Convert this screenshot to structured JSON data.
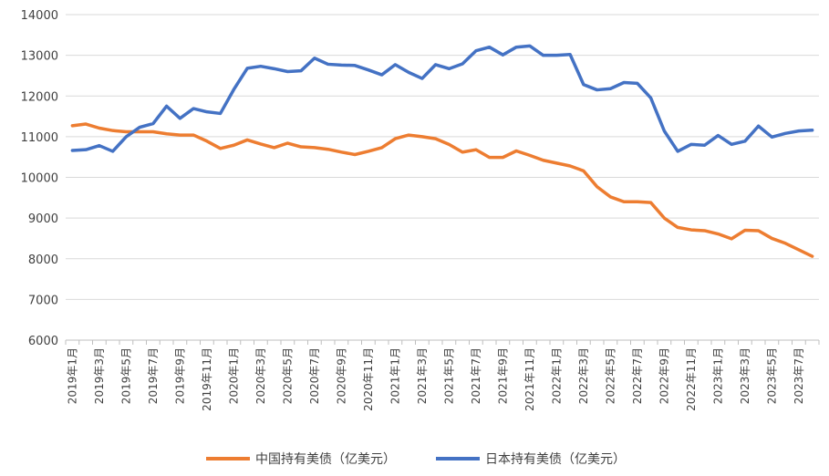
{
  "chart_data": {
    "type": "line",
    "title": "",
    "xlabel": "",
    "ylabel": "",
    "ylim": [
      6000,
      14000
    ],
    "yticks": [
      "6000",
      "7000",
      "8000",
      "9000",
      "10000",
      "11000",
      "12000",
      "13000",
      "14000"
    ],
    "grid": "horizontal",
    "legend_position": "bottom",
    "x_tick_labels": [
      "2019年1月",
      "2019年3月",
      "2019年5月",
      "2019年7月",
      "2019年9月",
      "2019年11月",
      "2020年1月",
      "2020年3月",
      "2020年5月",
      "2020年7月",
      "2020年9月",
      "2020年11月",
      "2021年1月",
      "2021年3月",
      "2021年5月",
      "2021年7月",
      "2021年9月",
      "2021年11月",
      "2022年1月",
      "2022年3月",
      "2022年5月",
      "2022年7月",
      "2022年9月",
      "2022年11月",
      "2023年1月",
      "2023年3月",
      "2023年5月",
      "2023年7月"
    ],
    "categories": [
      "2019年1月",
      "2019年2月",
      "2019年3月",
      "2019年4月",
      "2019年5月",
      "2019年6月",
      "2019年7月",
      "2019年8月",
      "2019年9月",
      "2019年10月",
      "2019年11月",
      "2019年12月",
      "2020年1月",
      "2020年2月",
      "2020年3月",
      "2020年4月",
      "2020年5月",
      "2020年6月",
      "2020年7月",
      "2020年8月",
      "2020年9月",
      "2020年10月",
      "2020年11月",
      "2020年12月",
      "2021年1月",
      "2021年2月",
      "2021年3月",
      "2021年4月",
      "2021年5月",
      "2021年6月",
      "2021年7月",
      "2021年8月",
      "2021年9月",
      "2021年10月",
      "2021年11月",
      "2021年12月",
      "2022年1月",
      "2022年2月",
      "2022年3月",
      "2022年4月",
      "2022年5月",
      "2022年6月",
      "2022年7月",
      "2022年8月",
      "2022年9月",
      "2022年10月",
      "2022年11月",
      "2022年12月",
      "2023年1月",
      "2023年2月",
      "2023年3月",
      "2023年4月",
      "2023年5月",
      "2023年6月",
      "2023年7月",
      "2023年8月"
    ],
    "series": [
      {
        "name": "中国持有美债（亿美元）",
        "color": "#ED7D31",
        "values": [
          11270,
          11310,
          11210,
          11150,
          11120,
          11120,
          11120,
          11070,
          11040,
          11040,
          10890,
          10710,
          10790,
          10920,
          10820,
          10730,
          10840,
          10750,
          10730,
          10690,
          10620,
          10560,
          10640,
          10730,
          10950,
          11040,
          11000,
          10950,
          10810,
          10620,
          10680,
          10490,
          10490,
          10650,
          10540,
          10420,
          10350,
          10280,
          10160,
          9770,
          9520,
          9400,
          9400,
          9380,
          9000,
          8770,
          8710,
          8690,
          8610,
          8490,
          8700,
          8690,
          8500,
          8380,
          8220,
          8060
        ]
      },
      {
        "name": "日本持有美债（亿美元）",
        "color": "#4472C4",
        "values": [
          10660,
          10680,
          10780,
          10640,
          11000,
          11230,
          11320,
          11750,
          11450,
          11690,
          11610,
          11570,
          12160,
          12680,
          12730,
          12670,
          12600,
          12620,
          12930,
          12780,
          12760,
          12750,
          12640,
          12520,
          12770,
          12580,
          12430,
          12770,
          12670,
          12790,
          13110,
          13200,
          13010,
          13200,
          13230,
          13000,
          13000,
          13020,
          12280,
          12150,
          12180,
          12330,
          12310,
          11950,
          11140,
          10640,
          10810,
          10790,
          11030,
          10810,
          10890,
          11260,
          10990,
          11080,
          11140,
          11160
        ]
      }
    ]
  }
}
